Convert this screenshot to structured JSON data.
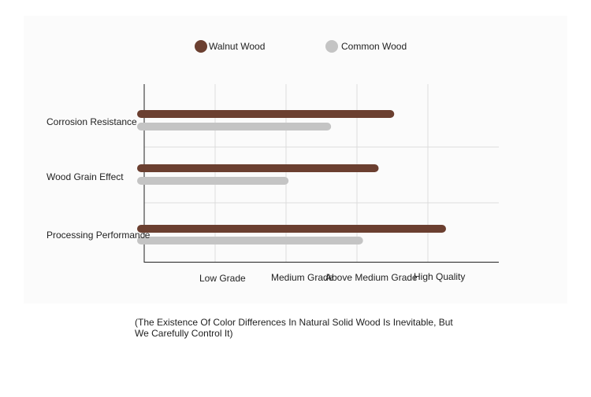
{
  "chart_data": {
    "type": "bar",
    "orientation": "horizontal",
    "categories": [
      "Corrosion Resistance",
      "Wood Grain Effect",
      "Processing Performance"
    ],
    "series": [
      {
        "name": "Walnut Wood",
        "color": "#6b3f30",
        "values": [
          3.47,
          3.25,
          4.2
        ]
      },
      {
        "name": "Common Wood",
        "color": "#c4c4c4",
        "values": [
          2.58,
          1.98,
          3.03
        ]
      }
    ],
    "xaxis_ticks": [
      "Low Grade",
      "Medium Grade",
      "Above Medium Grade",
      "High Quality"
    ],
    "xlim": [
      0,
      5
    ],
    "grid": true,
    "legend": "top"
  },
  "note": "(The Existence Of Color Differences In Natural Solid Wood Is Inevitable, But We Carefully Control It)"
}
